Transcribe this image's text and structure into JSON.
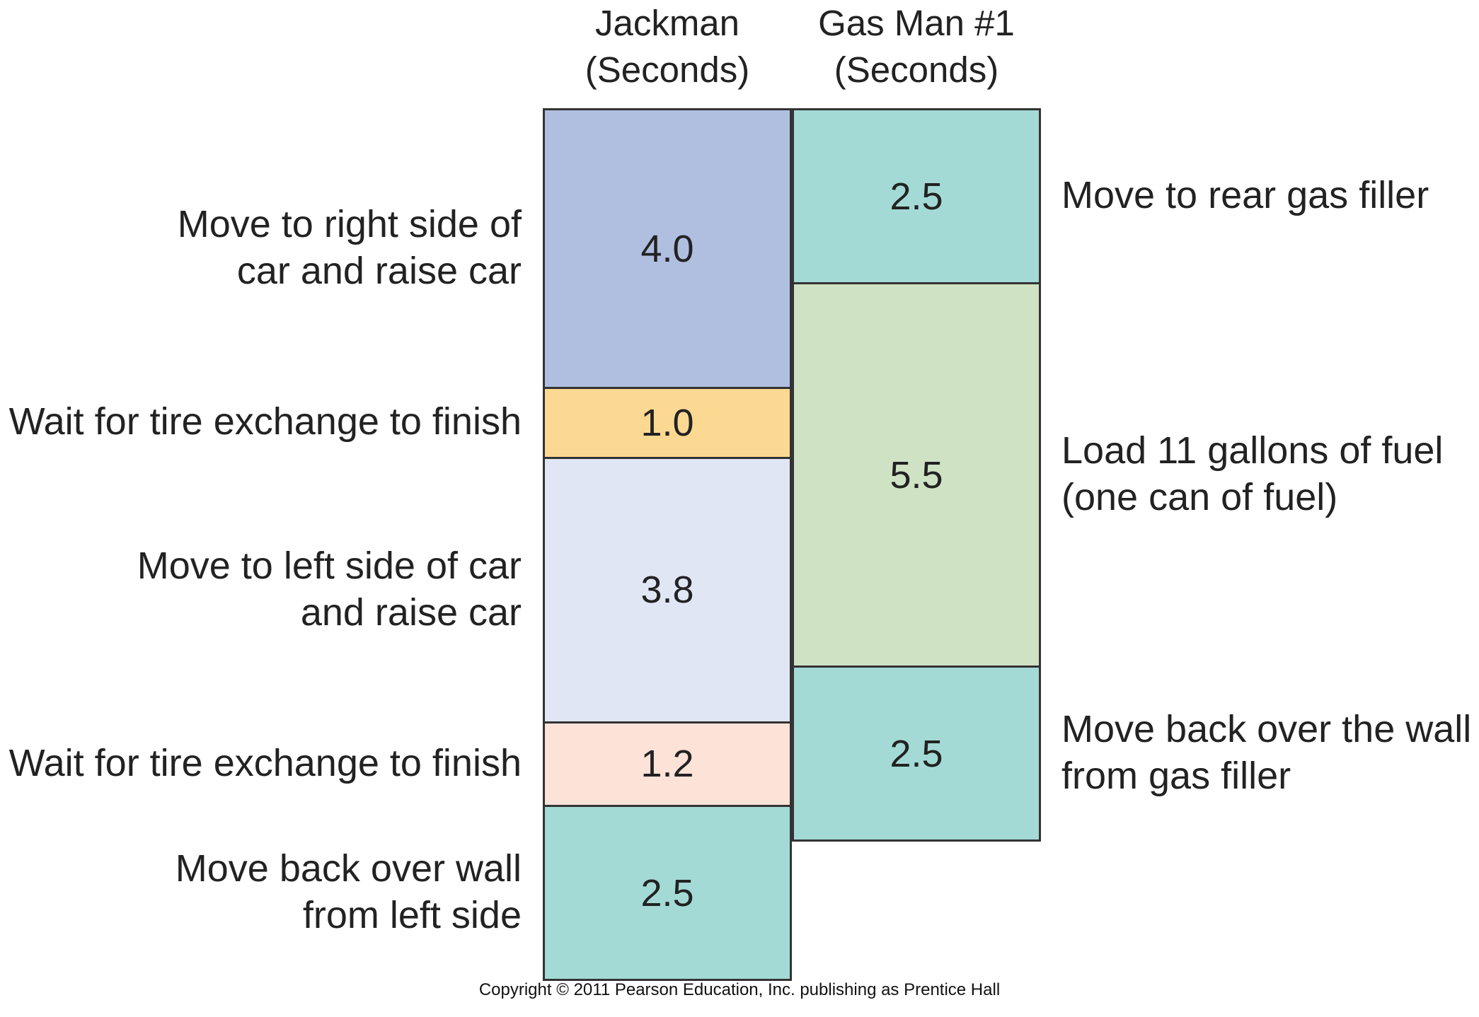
{
  "chart_data": {
    "type": "bar",
    "stacked": true,
    "orientation": "vertical",
    "categories": [
      "Jackman\n(Seconds)",
      "Gas Man #1\n(Seconds)"
    ],
    "columns": [
      {
        "header_line1": "Jackman",
        "header_line2": "(Seconds)",
        "label_side": "left",
        "segments": [
          {
            "value": 4.0,
            "value_label": "4.0",
            "label_lines": [
              "Move to right side of",
              "car and raise car"
            ],
            "color": "#b0bfe0"
          },
          {
            "value": 1.0,
            "value_label": "1.0",
            "label_lines": [
              "Wait for tire exchange to finish"
            ],
            "color": "#fcd992"
          },
          {
            "value": 3.8,
            "value_label": "3.8",
            "label_lines": [
              "Move to left side of car",
              "and raise car"
            ],
            "color": "#e1e6f5"
          },
          {
            "value": 1.2,
            "value_label": "1.2",
            "label_lines": [
              "Wait for tire exchange to finish"
            ],
            "color": "#fde2d8"
          },
          {
            "value": 2.5,
            "value_label": "2.5",
            "label_lines": [
              "Move back over wall",
              "from left side"
            ],
            "color": "#a3dad6"
          }
        ]
      },
      {
        "header_line1": "Gas Man #1",
        "header_line2": "(Seconds)",
        "label_side": "right",
        "segments": [
          {
            "value": 2.5,
            "value_label": "2.5",
            "label_lines": [
              "Move to rear gas filler"
            ],
            "color": "#a3dad6"
          },
          {
            "value": 5.5,
            "value_label": "5.5",
            "label_lines": [
              "Load 11 gallons of fuel",
              "(one can of fuel)"
            ],
            "color": "#d0e2c4"
          },
          {
            "value": 2.5,
            "value_label": "2.5",
            "label_lines": [
              "Move back over the wall",
              "from gas filler"
            ],
            "color": "#a3dad6"
          }
        ]
      }
    ]
  },
  "copyright": "Copyright © 2011 Pearson Education, Inc. publishing as Prentice Hall"
}
